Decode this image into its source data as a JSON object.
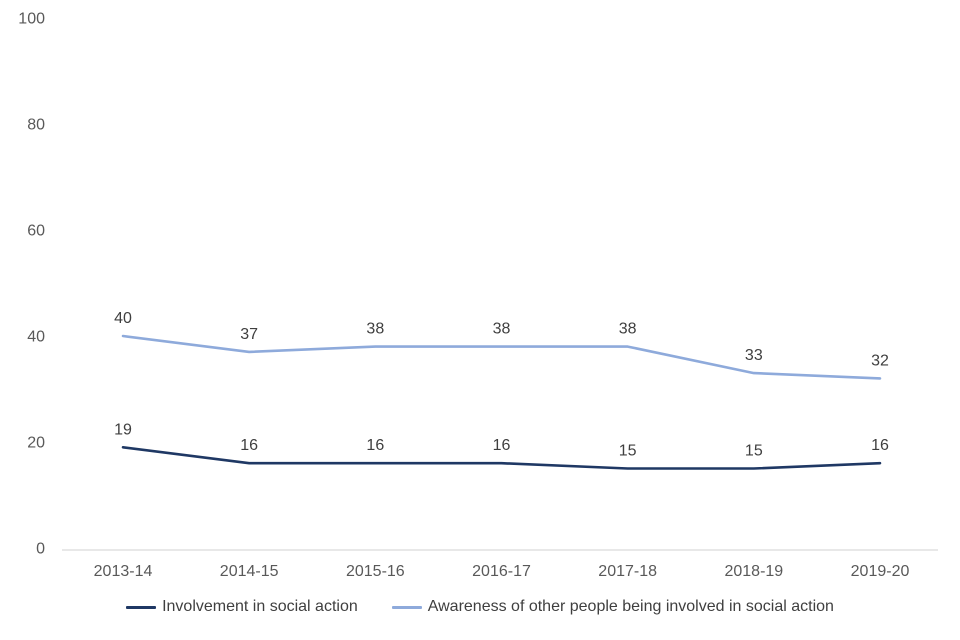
{
  "chart_data": {
    "type": "line",
    "categories": [
      "2013-14",
      "2014-15",
      "2015-16",
      "2016-17",
      "2017-18",
      "2018-19",
      "2019-20"
    ],
    "series": [
      {
        "name": "Involvement in social action",
        "values": [
          19,
          16,
          16,
          16,
          15,
          15,
          16
        ],
        "color": "#1F3864"
      },
      {
        "name": "Awareness of other people being involved in social action",
        "values": [
          40,
          37,
          38,
          38,
          38,
          33,
          32
        ],
        "color": "#8EAADB"
      }
    ],
    "title": "",
    "xlabel": "",
    "ylabel": "",
    "ylim": [
      0,
      100
    ],
    "yticks": [
      0,
      20,
      40,
      60,
      80,
      100
    ],
    "grid": false,
    "data_labels": true,
    "legend_position": "bottom"
  },
  "colors": {
    "axis_line": "#D9D9D9",
    "tick_text": "#595959",
    "label_text": "#3F3F3F"
  }
}
